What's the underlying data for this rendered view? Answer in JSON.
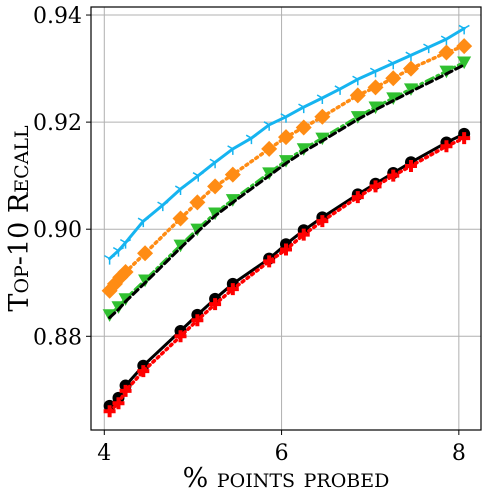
{
  "chart_data": {
    "type": "line",
    "xlabel": "% points probed",
    "ylabel": "Top-10 Recall",
    "xlim": [
      3.85,
      8.25
    ],
    "ylim": [
      0.8625,
      0.9415
    ],
    "xticks": [
      4,
      6,
      8
    ],
    "xtick_labels": [
      "4",
      "6",
      "8"
    ],
    "yticks": [
      0.88,
      0.9,
      0.92,
      0.94
    ],
    "ytick_labels": [
      "0.88",
      "0.90",
      "0.92",
      "0.94"
    ],
    "grid": true,
    "legend": "none",
    "series": [
      {
        "color": "#16b4f0",
        "linestyle": "solid",
        "marker": "tri_down",
        "x": [
          4.06,
          4.16,
          4.24,
          4.44,
          4.66,
          4.86,
          5.06,
          5.25,
          5.45,
          5.66,
          5.86,
          6.05,
          6.25,
          6.46,
          6.66,
          6.86,
          7.06,
          7.26,
          7.46,
          7.66,
          7.86,
          8.06
        ],
        "y": [
          0.8945,
          0.896,
          0.8975,
          0.9015,
          0.9045,
          0.9075,
          0.91,
          0.9125,
          0.915,
          0.917,
          0.9195,
          0.921,
          0.9228,
          0.9245,
          0.9262,
          0.928,
          0.9295,
          0.931,
          0.9325,
          0.934,
          0.9355,
          0.9375
        ]
      },
      {
        "color": "#ff8c14",
        "linestyle": "dotted",
        "marker": "diamond",
        "x": [
          4.06,
          4.12,
          4.18,
          4.24,
          4.46,
          4.86,
          5.05,
          5.25,
          5.45,
          5.86,
          6.05,
          6.25,
          6.46,
          6.86,
          7.06,
          7.26,
          7.46,
          7.86,
          8.06
        ],
        "y": [
          0.8885,
          0.8898,
          0.891,
          0.892,
          0.8955,
          0.902,
          0.905,
          0.908,
          0.9102,
          0.915,
          0.9172,
          0.919,
          0.921,
          0.925,
          0.9265,
          0.9282,
          0.93,
          0.933,
          0.9342
        ]
      },
      {
        "color": "#30c030",
        "linestyle": "dashdot",
        "marker": "triangle_down",
        "x": [
          4.06,
          4.16,
          4.24,
          4.46,
          4.86,
          5.05,
          5.25,
          5.45,
          5.86,
          6.05,
          6.25,
          6.46,
          6.86,
          7.06,
          7.26,
          7.46,
          7.86,
          8.06
        ],
        "y": [
          0.884,
          0.8855,
          0.887,
          0.8905,
          0.897,
          0.9,
          0.903,
          0.9055,
          0.9105,
          0.9128,
          0.915,
          0.917,
          0.921,
          0.9228,
          0.9245,
          0.9262,
          0.9295,
          0.9312
        ]
      },
      {
        "color": "#000000",
        "linestyle": "dashed",
        "marker": "none",
        "x": [
          4.06,
          4.16,
          4.24,
          4.46,
          4.86,
          5.05,
          5.25,
          5.45,
          5.86,
          6.05,
          6.25,
          6.46,
          6.86,
          7.06,
          7.26,
          7.46,
          7.86,
          8.06
        ],
        "y": [
          0.8835,
          0.885,
          0.8865,
          0.89,
          0.8965,
          0.8995,
          0.9025,
          0.905,
          0.91,
          0.9123,
          0.9145,
          0.9165,
          0.9205,
          0.9223,
          0.924,
          0.9257,
          0.929,
          0.9307
        ]
      },
      {
        "color": "#000000",
        "linestyle": "solid",
        "marker": "circle",
        "x": [
          4.06,
          4.16,
          4.24,
          4.44,
          4.86,
          5.05,
          5.25,
          5.45,
          5.86,
          6.05,
          6.25,
          6.46,
          6.86,
          7.06,
          7.26,
          7.46,
          7.86,
          8.06
        ],
        "y": [
          0.867,
          0.8685,
          0.8708,
          0.8745,
          0.881,
          0.884,
          0.887,
          0.8898,
          0.8945,
          0.8972,
          0.8998,
          0.9022,
          0.9065,
          0.9085,
          0.9105,
          0.9125,
          0.9162,
          0.9178
        ]
      },
      {
        "color": "#ff0000",
        "linestyle": "dotted",
        "marker": "plus",
        "x": [
          4.06,
          4.16,
          4.24,
          4.44,
          4.86,
          5.05,
          5.25,
          5.45,
          5.86,
          6.05,
          6.25,
          6.46,
          6.86,
          7.06,
          7.26,
          7.46,
          7.86,
          8.06
        ],
        "y": [
          0.866,
          0.8675,
          0.8698,
          0.8735,
          0.88,
          0.883,
          0.886,
          0.8888,
          0.894,
          0.8962,
          0.899,
          0.9015,
          0.906,
          0.908,
          0.91,
          0.9118,
          0.9155,
          0.917
        ]
      }
    ]
  }
}
